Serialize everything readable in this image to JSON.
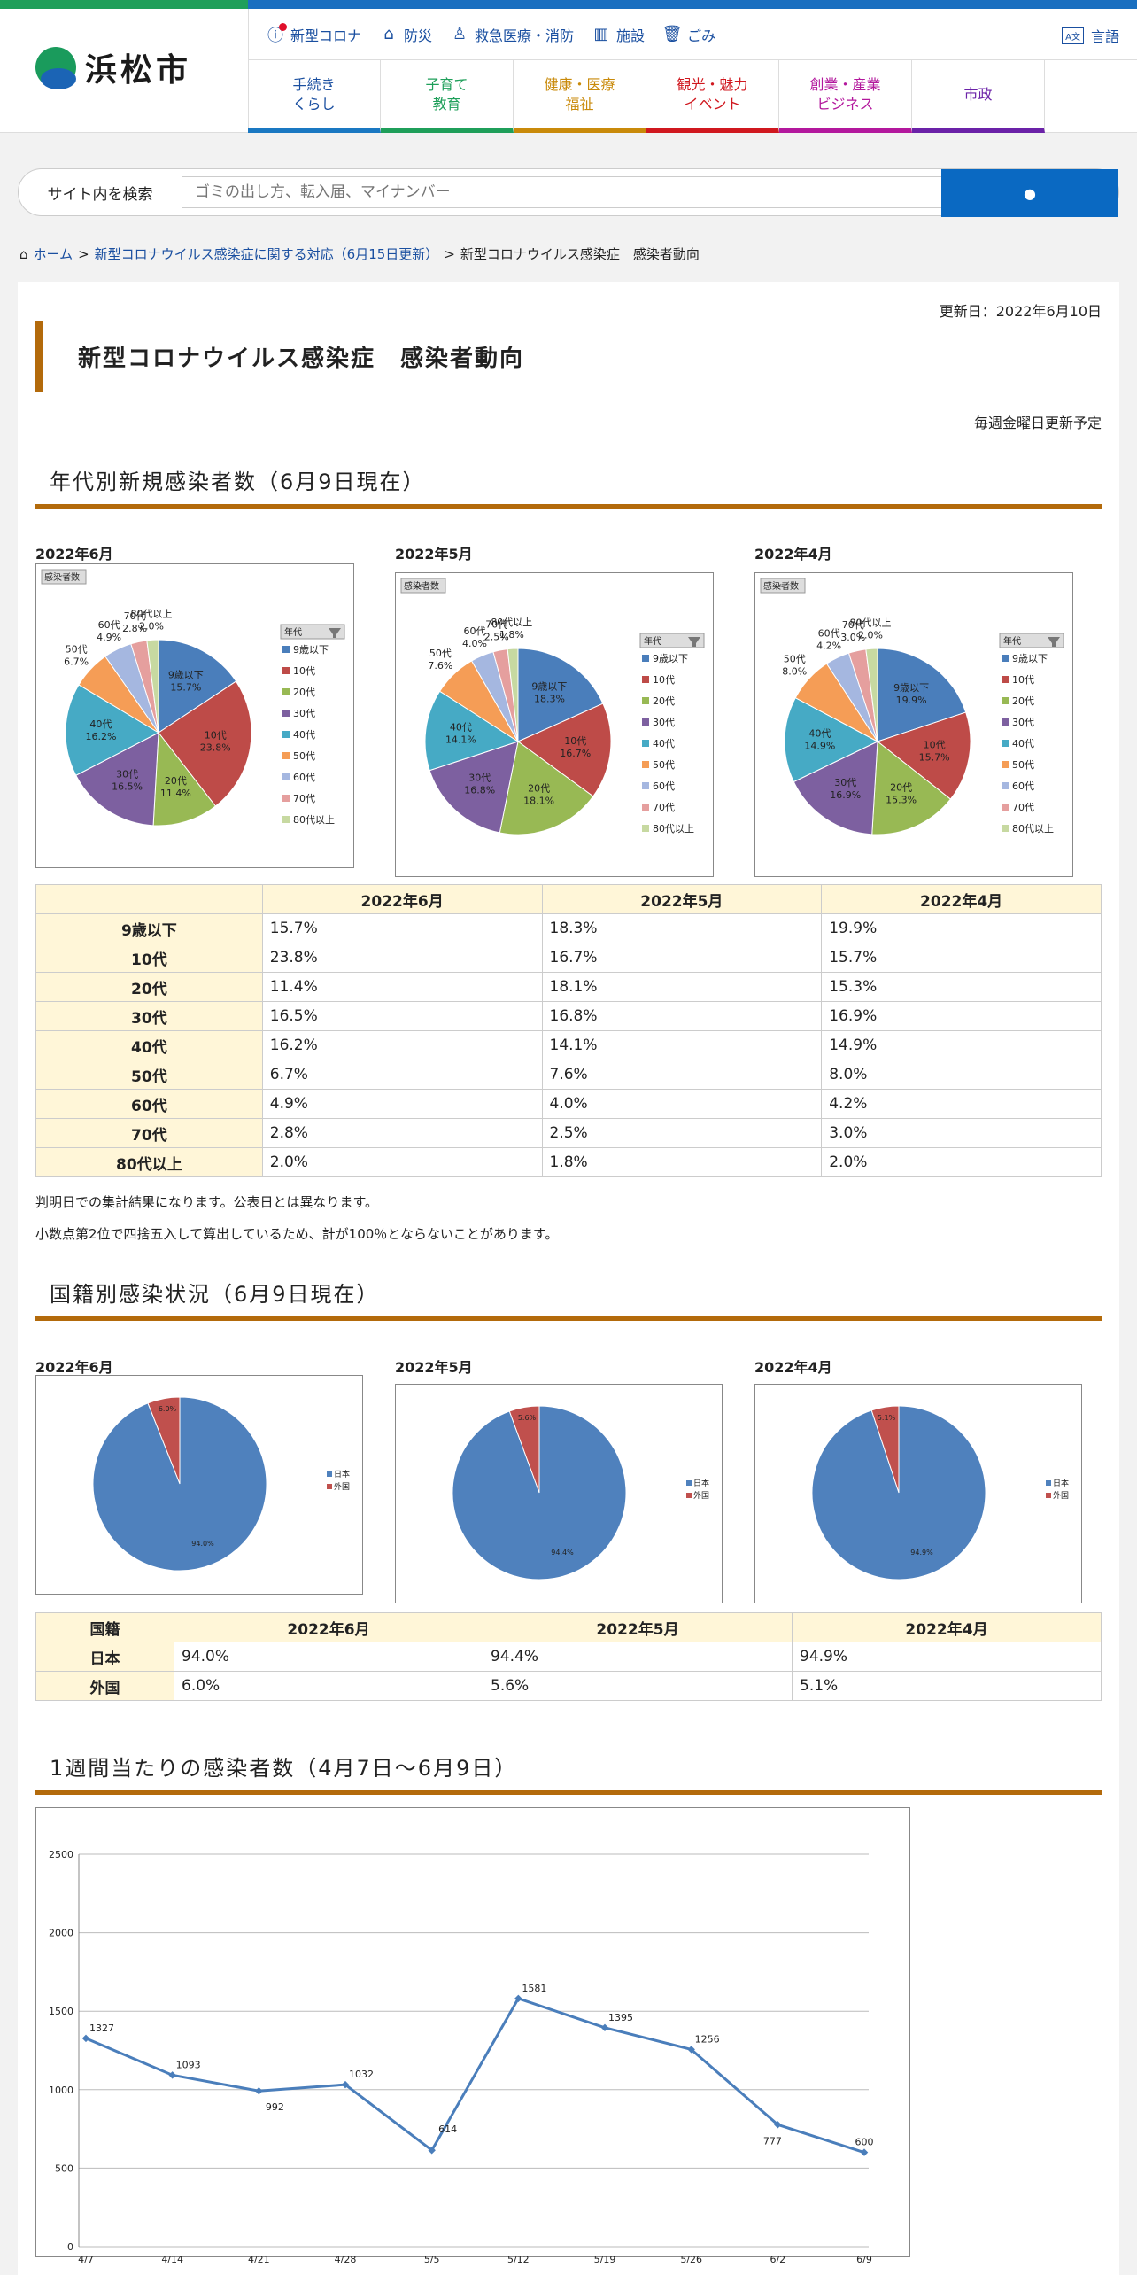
{
  "header": {
    "logo_text": "浜松市",
    "util": [
      {
        "label": "新型コロナ",
        "icon": "alert-icon"
      },
      {
        "label": "防災",
        "icon": "house-icon"
      },
      {
        "label": "救急医療・消防",
        "icon": "person-icon"
      },
      {
        "label": "施設",
        "icon": "building-icon"
      },
      {
        "label": "ごみ",
        "icon": "trash-icon"
      }
    ],
    "lang_label": "言語",
    "nav": [
      {
        "line1": "手続き",
        "line2": "くらし",
        "color": "#1a78c2"
      },
      {
        "line1": "子育て",
        "line2": "教育",
        "color": "#1f9f5a"
      },
      {
        "line1": "健康・医療",
        "line2": "福祉",
        "color": "#c98a0a"
      },
      {
        "line1": "観光・魅力",
        "line2": "イベント",
        "color": "#d0181f"
      },
      {
        "line1": "創業・産業",
        "line2": "ビジネス",
        "color": "#b3189d"
      },
      {
        "line1": "市政",
        "line2": "",
        "color": "#6b22a8"
      }
    ]
  },
  "search": {
    "label": "サイト内を検索",
    "placeholder": "ゴミの出し方、転入届、マイナンバー"
  },
  "breadcrumb": {
    "home": "ホーム",
    "parent": "新型コロナウイルス感染症に関する対応（6月15日更新）",
    "current": "新型コロナウイルス感染症　感染者動向"
  },
  "page": {
    "updated": "更新日：2022年6月10日",
    "title": "新型コロナウイルス感染症　感染者動向",
    "update_note": "毎週金曜日更新予定",
    "section1": "年代別新規感染者数（6月9日現在）",
    "section2": "国籍別感染状況（6月9日現在）",
    "section3": "1週間当たりの感染者数（4月7日～6月9日）",
    "note1": "判明日での集計結果になります。公表日とは異なります。",
    "note2": "小数点第2位で四捨五入して算出しているため、計が100％とならないことがあります。"
  },
  "chart_data": [
    {
      "type": "pie",
      "id": "age-jun",
      "title": "2022年6月",
      "tag": "感染者数",
      "legend_title": "年代",
      "categories": [
        "9歳以下",
        "10代",
        "20代",
        "30代",
        "40代",
        "50代",
        "60代",
        "70代",
        "80代以上"
      ],
      "values": [
        15.7,
        23.8,
        11.4,
        16.5,
        16.2,
        6.7,
        4.9,
        2.8,
        2.0
      ],
      "labels": [
        "15.7%",
        "23.8%",
        "11.4%",
        "16.5%",
        "16.2%",
        "6.7%",
        "4.9%",
        "2.8%",
        "2.0%"
      ]
    },
    {
      "type": "pie",
      "id": "age-may",
      "title": "2022年5月",
      "tag": "感染者数",
      "legend_title": "年代",
      "categories": [
        "9歳以下",
        "10代",
        "20代",
        "30代",
        "40代",
        "50代",
        "60代",
        "70代",
        "80代以上"
      ],
      "values": [
        18.3,
        16.7,
        18.1,
        16.8,
        14.1,
        7.6,
        4.0,
        2.5,
        1.8
      ],
      "labels": [
        "18.3%",
        "16.7%",
        "18.1%",
        "16.8%",
        "14.1%",
        "7.6%",
        "4.0%",
        "2.5%",
        "1.8%"
      ]
    },
    {
      "type": "pie",
      "id": "age-apr",
      "title": "2022年4月",
      "tag": "感染者数",
      "legend_title": "年代",
      "categories": [
        "9歳以下",
        "10代",
        "20代",
        "30代",
        "40代",
        "50代",
        "60代",
        "70代",
        "80代以上"
      ],
      "values": [
        19.9,
        15.7,
        15.3,
        16.9,
        14.9,
        8.0,
        4.2,
        3.0,
        2.0
      ],
      "labels": [
        "19.9%",
        "15.7%",
        "15.3%",
        "16.9%",
        "14.9%",
        "8.0%",
        "4.2%",
        "3.0%",
        "2.0%"
      ]
    },
    {
      "type": "pie",
      "id": "nat-jun",
      "title": "2022年6月",
      "categories": [
        "日本",
        "外国"
      ],
      "values": [
        94.0,
        6.0
      ],
      "labels": [
        "94.0%",
        "6.0%"
      ]
    },
    {
      "type": "pie",
      "id": "nat-may",
      "title": "2022年5月",
      "categories": [
        "日本",
        "外国"
      ],
      "values": [
        94.4,
        5.6
      ],
      "labels": [
        "94.4%",
        "5.6%"
      ]
    },
    {
      "type": "pie",
      "id": "nat-apr",
      "title": "2022年4月",
      "categories": [
        "日本",
        "外国"
      ],
      "values": [
        94.9,
        5.1
      ],
      "labels": [
        "94.9%",
        "5.1%"
      ]
    },
    {
      "type": "line",
      "id": "weekly",
      "x": [
        "4/7",
        "4/14",
        "4/21",
        "4/28",
        "5/5",
        "5/12",
        "5/19",
        "5/26",
        "6/2",
        "6/9"
      ],
      "values": [
        1327,
        1093,
        992,
        1032,
        614,
        1581,
        1395,
        1256,
        777,
        600
      ],
      "ylim": [
        0,
        2500
      ],
      "yticks": [
        "0",
        "500",
        "1000",
        "1500",
        "2000",
        "2500"
      ],
      "grid": true
    }
  ],
  "age_table": {
    "headers": [
      "",
      "2022年6月",
      "2022年5月",
      "2022年4月"
    ],
    "rows": [
      [
        "9歳以下",
        "15.7%",
        "18.3%",
        "19.9%"
      ],
      [
        "10代",
        "23.8%",
        "16.7%",
        "15.7%"
      ],
      [
        "20代",
        "11.4%",
        "18.1%",
        "15.3%"
      ],
      [
        "30代",
        "16.5%",
        "16.8%",
        "16.9%"
      ],
      [
        "40代",
        "16.2%",
        "14.1%",
        "14.9%"
      ],
      [
        "50代",
        "6.7%",
        "7.6%",
        "8.0%"
      ],
      [
        "60代",
        "4.9%",
        "4.0%",
        "4.2%"
      ],
      [
        "70代",
        "2.8%",
        "2.5%",
        "3.0%"
      ],
      [
        "80代以上",
        "2.0%",
        "1.8%",
        "2.0%"
      ]
    ]
  },
  "nat_table": {
    "headers": [
      "国籍",
      "2022年6月",
      "2022年5月",
      "2022年4月"
    ],
    "rows": [
      [
        "日本",
        "94.0%",
        "94.4%",
        "94.9%"
      ],
      [
        "外国",
        "6.0%",
        "5.6%",
        "5.1%"
      ]
    ]
  },
  "colors": {
    "age": [
      "#4a7ebb",
      "#be4b48",
      "#98b954",
      "#7d60a0",
      "#46aac5",
      "#f59d56",
      "#a5b7e0",
      "#e59f9e",
      "#c7d9a1"
    ],
    "nat": [
      "#4f81bd",
      "#c0504d"
    ],
    "line": "#4a7ebb"
  }
}
